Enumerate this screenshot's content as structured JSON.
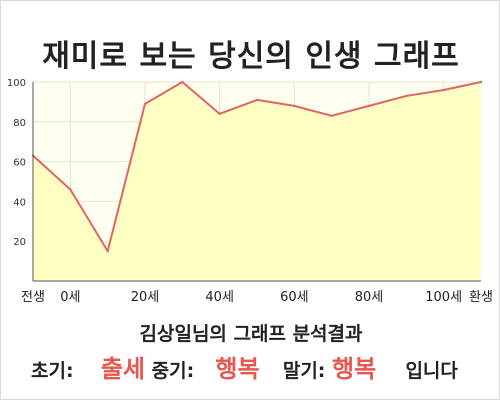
{
  "title": "재미로 보는 당신의 인생 그래프",
  "chart_data": {
    "type": "area",
    "title": "재미로 보는 당신의 인생 그래프",
    "xlabel": "",
    "ylabel": "",
    "x": [
      "전생",
      "0세",
      "",
      "20세",
      "",
      "40세",
      "",
      "60세",
      "",
      "80세",
      "",
      "100세",
      "환생"
    ],
    "x_ticks": [
      "전생",
      "0세",
      "20세",
      "40세",
      "60세",
      "80세",
      "100세",
      "환생"
    ],
    "series": [
      {
        "values": [
          63,
          46,
          15,
          89,
          100,
          84,
          91,
          88,
          83,
          88,
          93,
          96,
          100
        ]
      }
    ],
    "ylim": [
      0,
      100
    ],
    "y_ticks": [
      "20",
      "40",
      "60",
      "80",
      "100"
    ],
    "grid": true,
    "colors": {
      "line": "#e06464",
      "fill": "#ffffc4",
      "plot_bg": "#fffff0",
      "grid": "#e4e4d4"
    }
  },
  "summary": {
    "heading": "김상일님의 그래프 분석결과",
    "early_label": "초기:",
    "early_value": "출세",
    "mid_label": "중기:",
    "mid_value": "행복",
    "late_label": "말기:",
    "late_value": "행복",
    "suffix": "입니다"
  }
}
